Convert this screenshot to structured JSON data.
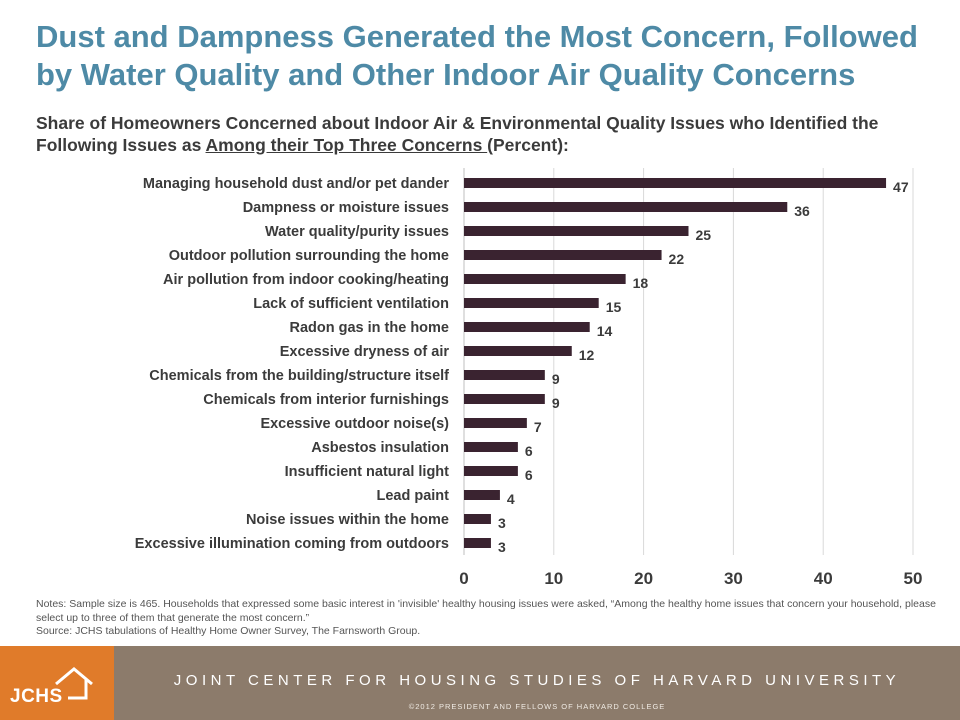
{
  "title": "Dust and Dampness Generated the Most Concern, Followed by Water Quality and Other Indoor Air Quality Concerns",
  "subtitle_pre": "Share of Homeowners Concerned about Indoor Air & Environmental Quality Issues who Identified the Following Issues as ",
  "subtitle_underlined": "Among their Top Three Concerns ",
  "subtitle_post": "(Percent):",
  "chart_data": {
    "type": "bar",
    "orientation": "horizontal",
    "categories": [
      "Managing household dust and/or pet dander",
      "Dampness or moisture issues",
      "Water quality/purity issues",
      "Outdoor pollution surrounding the home",
      "Air pollution from indoor cooking/heating",
      "Lack of sufficient ventilation",
      "Radon gas in the home",
      "Excessive dryness of air",
      "Chemicals from the building/structure itself",
      "Chemicals from interior furnishings",
      "Excessive outdoor noise(s)",
      "Asbestos insulation",
      "Insufficient natural light",
      "Lead paint",
      "Noise issues within the home",
      "Excessive illumination coming from outdoors"
    ],
    "values": [
      47,
      36,
      25,
      22,
      18,
      15,
      14,
      12,
      9,
      9,
      7,
      6,
      6,
      4,
      3,
      3
    ],
    "xlim": [
      0,
      50
    ],
    "xticks": [
      0,
      10,
      20,
      30,
      40,
      50
    ],
    "bar_color": "#3a2330",
    "grid": true
  },
  "notes": "Notes: Sample size is 465.  Households that expressed some basic interest in 'invisible' healthy housing issues were asked, “Among the healthy home issues that concern your household,  please select up to three of them that generate the most concern.”",
  "source": "Source: JCHS tabulations of Healthy Home Owner Survey, The Farnsworth Group.",
  "footer": {
    "logo": "JCHS",
    "org": "JOINT CENTER FOR HOUSING STUDIES OF HARVARD UNIVERSITY",
    "copyright": "©2012  PRESIDENT  AND  FELLOWS  OF  HARVARD  COLLEGE"
  }
}
